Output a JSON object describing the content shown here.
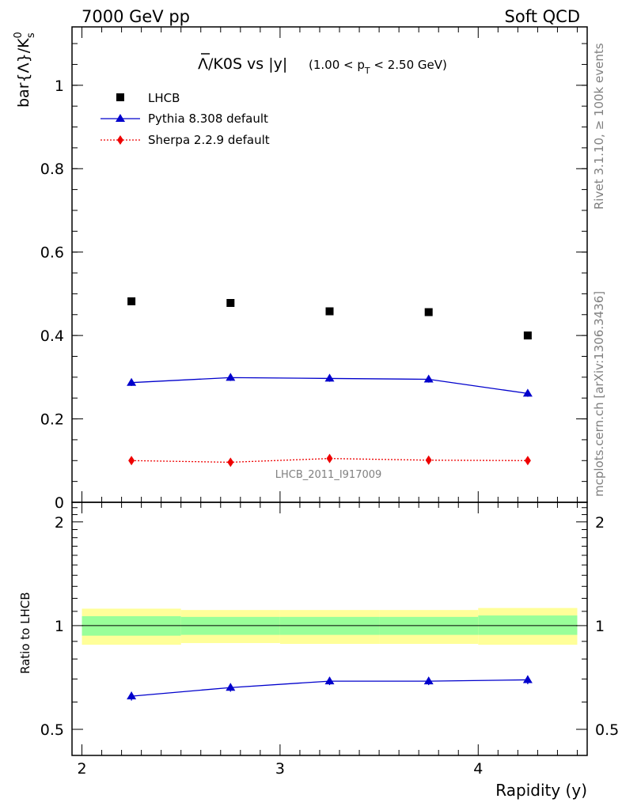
{
  "header": {
    "left": "7000 GeV pp",
    "right": "Soft QCD"
  },
  "side": {
    "rivet": "Rivet 3.1.10, ≥ 100k events",
    "mcplots": "mcplots.cern.ch [arXiv:1306.3436]"
  },
  "title": {
    "main": "Λ/K0S vs |y|",
    "cut": "(1.00 < p",
    "cut_sub": "T",
    "cut_tail": " < 2.50 GeV)"
  },
  "watermark": "LHCB_2011_I917009",
  "ylabel": {
    "text": "bar{Λ}/K",
    "sup": "0",
    "sub": "s"
  },
  "ratio_ylabel": "Ratio to LHCB",
  "xlabel": "Rapidity (y)",
  "colors": {
    "data": "#000000",
    "pythia": "#0000cc",
    "sherpa": "#ee0000",
    "band_inner": "#99ff99",
    "band_outer": "#ffff99"
  },
  "chart_data": [
    {
      "type": "scatter",
      "title": "Λ/K0S vs |y| (1.00 < pT < 2.50 GeV)",
      "xlabel": "Rapidity (y)",
      "ylabel": "bar{Λ}/K0s",
      "xlim": [
        1.95,
        4.55
      ],
      "ylim": [
        0,
        1.14
      ],
      "y_ticks": [
        0,
        0.2,
        0.4,
        0.6,
        0.8,
        1
      ],
      "legend_position": "top-left",
      "x": [
        2.25,
        2.75,
        3.25,
        3.75,
        4.25
      ],
      "series": [
        {
          "name": "LHCB",
          "style": "markers",
          "marker": "square",
          "values": [
            0.482,
            0.478,
            0.458,
            0.456,
            0.4
          ]
        },
        {
          "name": "Pythia 8.308 default",
          "style": "line",
          "marker": "triangle",
          "values": [
            0.287,
            0.299,
            0.297,
            0.295,
            0.261
          ],
          "errors": [
            0.008,
            0.008,
            0.008,
            0.008,
            0.008
          ]
        },
        {
          "name": "Sherpa 2.2.9 default",
          "style": "dotted",
          "marker": "diamond",
          "values": [
            0.1,
            0.096,
            0.105,
            0.101,
            0.1
          ],
          "errors": [
            0.004,
            0.004,
            0.004,
            0.004,
            0.004
          ]
        }
      ]
    },
    {
      "type": "line",
      "ylabel": "Ratio to LHCB",
      "xlabel": "Rapidity (y)",
      "xlim": [
        1.95,
        4.55
      ],
      "ylim": [
        0.42,
        2.28
      ],
      "y_ticks": [
        0.5,
        1,
        2
      ],
      "x_ticks": [
        2,
        3,
        4
      ],
      "bins": [
        [
          2.0,
          2.5
        ],
        [
          2.5,
          3.0
        ],
        [
          3.0,
          3.5
        ],
        [
          3.5,
          4.0
        ],
        [
          4.0,
          4.5
        ]
      ],
      "band_inner": [
        [
          0.935,
          1.065
        ],
        [
          0.94,
          1.06
        ],
        [
          0.94,
          1.06
        ],
        [
          0.94,
          1.06
        ],
        [
          0.94,
          1.07
        ]
      ],
      "band_outer": [
        [
          0.88,
          1.12
        ],
        [
          0.89,
          1.11
        ],
        [
          0.885,
          1.11
        ],
        [
          0.885,
          1.11
        ],
        [
          0.88,
          1.125
        ]
      ],
      "x": [
        2.25,
        2.75,
        3.25,
        3.75,
        4.25
      ],
      "series": [
        {
          "name": "Pythia 8.308 default",
          "values": [
            0.624,
            0.661,
            0.69,
            0.69,
            0.696
          ],
          "errors": [
            0.018,
            0.018,
            0.018,
            0.018,
            0.02
          ]
        }
      ]
    }
  ]
}
